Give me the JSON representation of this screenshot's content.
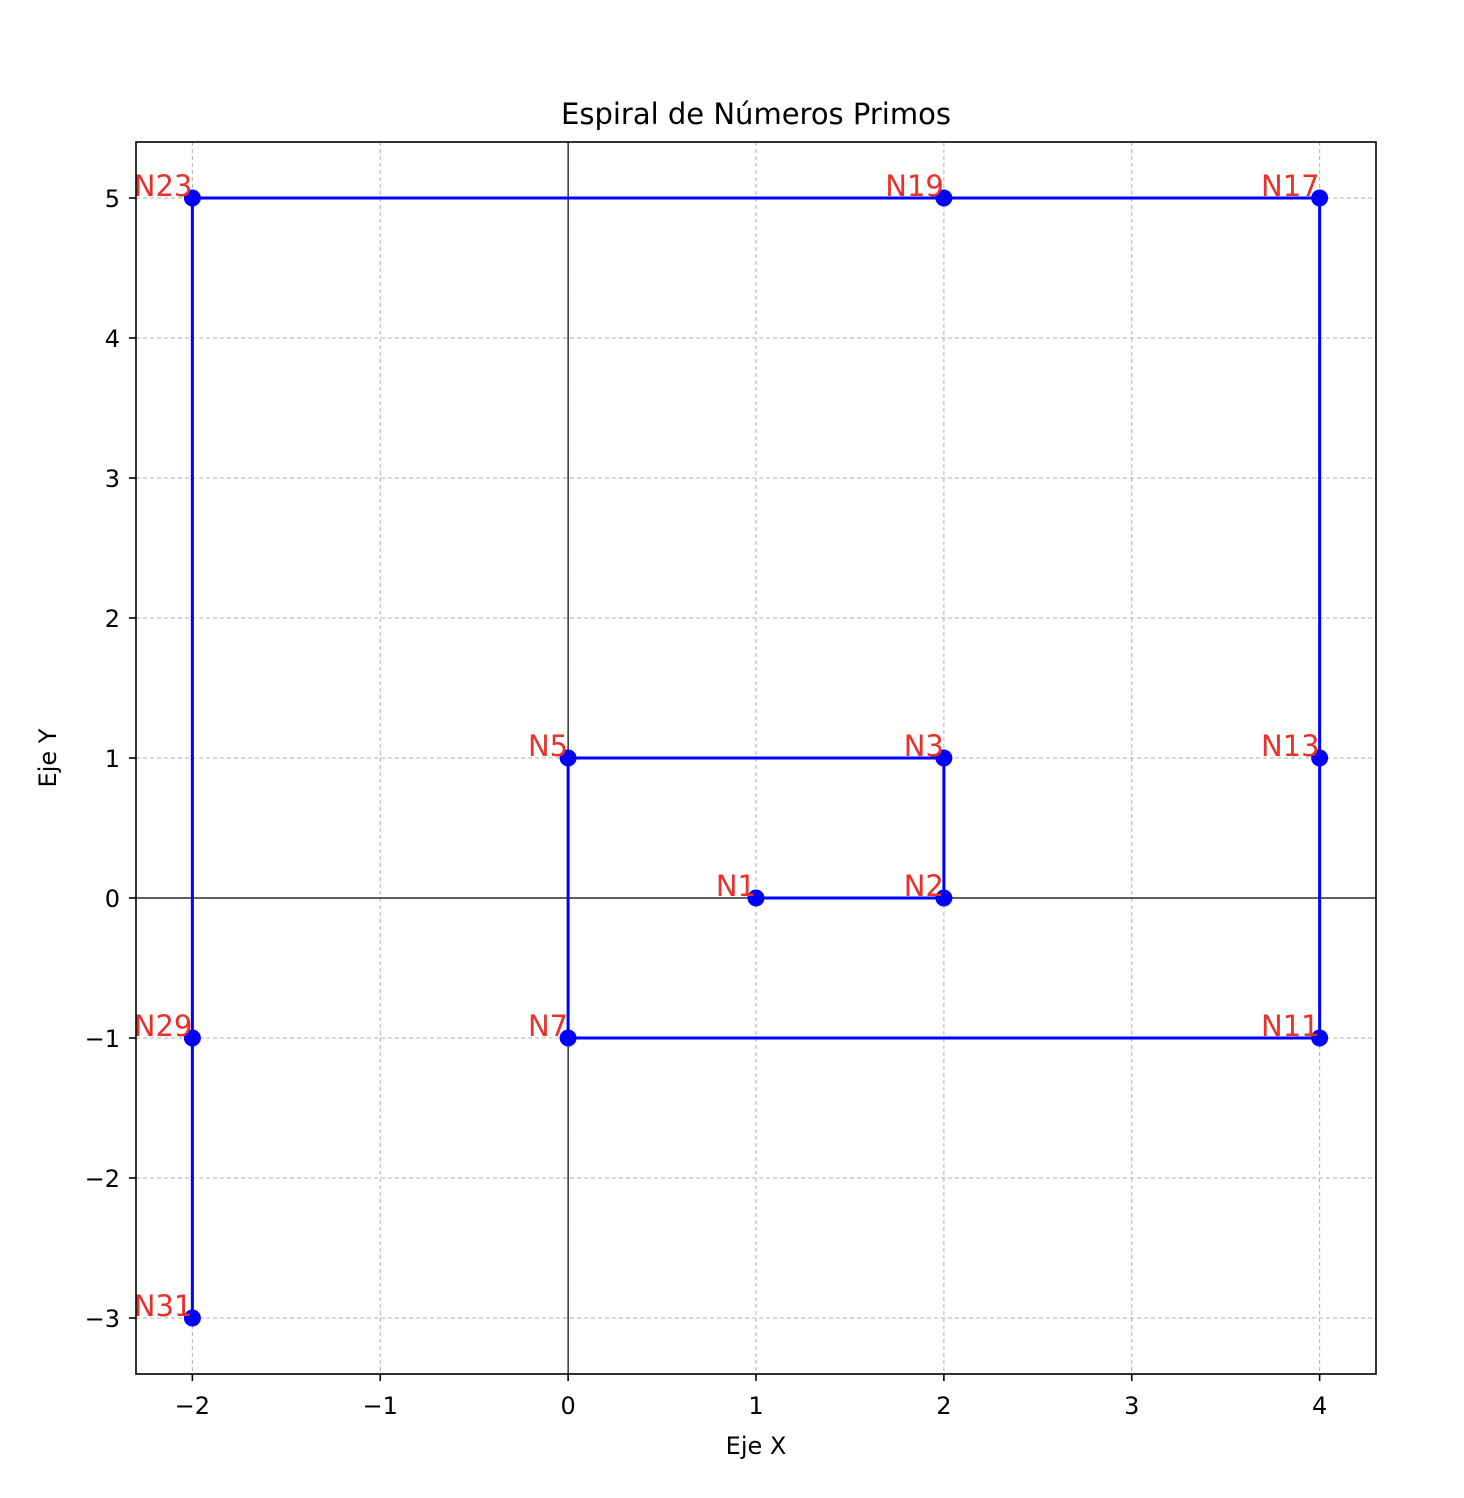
{
  "chart_data": {
    "type": "line",
    "title": "Espiral de Números Primos",
    "xlabel": "Eje X",
    "ylabel": "Eje Y",
    "xlim": [
      -2.3,
      4.3
    ],
    "ylim": [
      -3.4,
      5.4
    ],
    "xticks": [
      -2,
      -1,
      0,
      1,
      2,
      3,
      4
    ],
    "yticks": [
      -3,
      -2,
      -1,
      0,
      1,
      2,
      3,
      4,
      5
    ],
    "xtick_labels": [
      "−2",
      "−1",
      "0",
      "1",
      "2",
      "3",
      "4"
    ],
    "ytick_labels": [
      "−3",
      "−2",
      "−1",
      "0",
      "1",
      "2",
      "3",
      "4",
      "5"
    ],
    "grid": true,
    "grid_style": "dashed",
    "reference_lines": {
      "x": 0,
      "y": 0
    },
    "series": [
      {
        "line_color": "#0000ff",
        "marker": "circle",
        "points": [
          {
            "x": 1,
            "y": 0,
            "label": "N1"
          },
          {
            "x": 2,
            "y": 0,
            "label": "N2"
          },
          {
            "x": 2,
            "y": 1,
            "label": "N3"
          },
          {
            "x": 0,
            "y": 1,
            "label": "N5"
          },
          {
            "x": 0,
            "y": -1,
            "label": "N7"
          },
          {
            "x": 4,
            "y": -1,
            "label": "N11"
          },
          {
            "x": 4,
            "y": 1,
            "label": "N13"
          },
          {
            "x": 4,
            "y": 5,
            "label": "N17"
          },
          {
            "x": 2,
            "y": 5,
            "label": "N19"
          },
          {
            "x": -2,
            "y": 5,
            "label": "N23"
          },
          {
            "x": -2,
            "y": -1,
            "label": "N29"
          },
          {
            "x": -2,
            "y": -3,
            "label": "N31"
          }
        ]
      }
    ],
    "label_color": "#e8312a"
  }
}
